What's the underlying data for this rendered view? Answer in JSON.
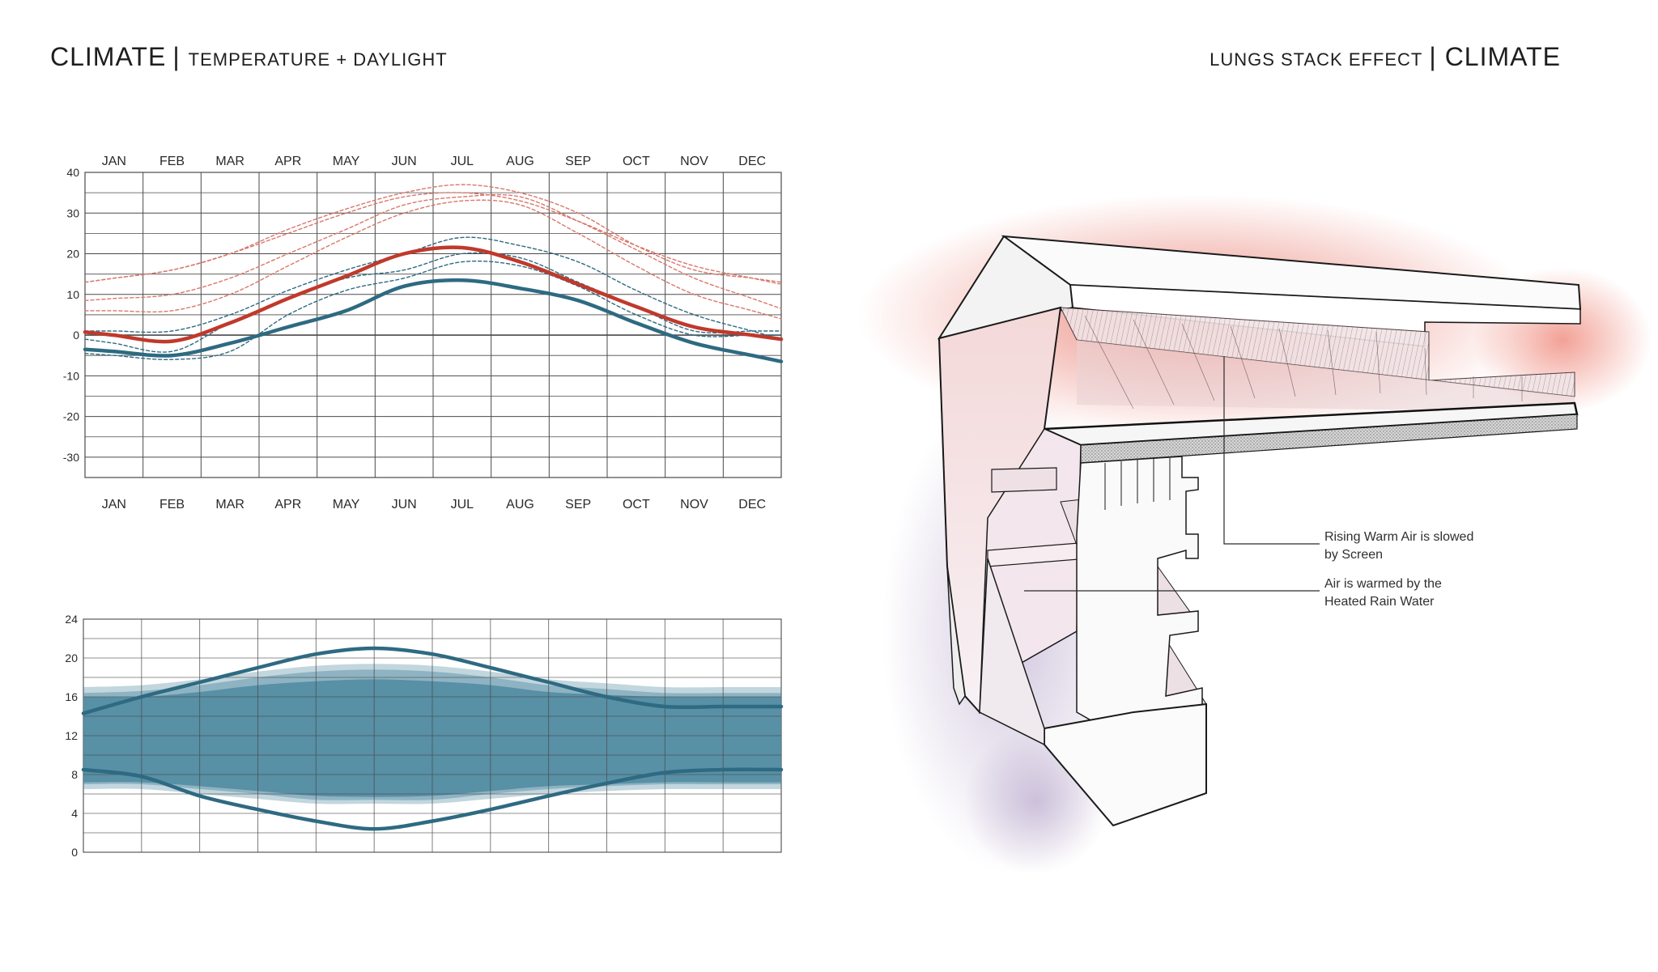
{
  "header_left": {
    "title": "CLIMATE",
    "divider": "|",
    "subtitle": "TEMPERATURE + DAYLIGHT"
  },
  "header_right": {
    "subtitle": "LUNGS STACK EFFECT",
    "divider": "|",
    "title": "CLIMATE"
  },
  "colors": {
    "red": "#c0392b",
    "red_light": "#d9776b",
    "blue": "#2e6a82",
    "blue_band": "#4f8aa1",
    "grid": "#4a4a4a"
  },
  "chart_data": [
    {
      "type": "line",
      "categories": [
        "JAN",
        "FEB",
        "MAR",
        "APR",
        "MAY",
        "JUN",
        "JUL",
        "AUG",
        "SEP",
        "OCT",
        "NOV",
        "DEC"
      ],
      "ylim": [
        -35,
        40
      ],
      "yticks": [
        40,
        30,
        20,
        10,
        0,
        -10,
        -20,
        -30
      ],
      "grid": true,
      "series": [
        {
          "style": "solid-red",
          "values": [
            0,
            -1.5,
            3,
            9,
            14.5,
            20,
            21.5,
            18,
            12.5,
            7,
            2,
            0
          ]
        },
        {
          "style": "solid-blue",
          "values": [
            -4,
            -5,
            -2,
            2,
            6,
            12,
            13.5,
            11.5,
            8.5,
            3,
            -2,
            -5
          ]
        },
        {
          "style": "dashed-red",
          "values": [
            14,
            16,
            20,
            25,
            30,
            34,
            35,
            33,
            28,
            22,
            17,
            14
          ]
        },
        {
          "style": "dashed-red",
          "values": [
            9,
            10,
            14,
            20,
            26,
            32,
            34,
            34,
            28,
            21,
            14,
            9
          ]
        },
        {
          "style": "dashed-red",
          "values": [
            6,
            6,
            10,
            17,
            24,
            30,
            33,
            32,
            25,
            17,
            10,
            6
          ]
        },
        {
          "style": "dashed-red",
          "values": [
            14,
            16,
            20,
            26,
            31,
            35,
            37,
            35,
            30,
            22,
            16,
            14
          ]
        },
        {
          "style": "dashed-blue",
          "values": [
            1,
            1,
            5,
            11,
            16,
            20,
            24,
            22,
            18,
            11,
            5,
            1
          ]
        },
        {
          "style": "dashed-blue",
          "values": [
            -2,
            -4,
            3,
            9,
            14,
            16,
            20,
            19,
            13,
            7,
            1,
            1
          ]
        },
        {
          "style": "dashed-blue",
          "values": [
            -5,
            -6,
            -4,
            5,
            11,
            14,
            18,
            17,
            12,
            5,
            0,
            0
          ]
        }
      ]
    },
    {
      "type": "area",
      "x": [
        0,
        1,
        2,
        3,
        4,
        5,
        6,
        7,
        8,
        9,
        10,
        11,
        12
      ],
      "ylim": [
        0,
        24
      ],
      "yticks": [
        "24",
        "20",
        "16",
        "12",
        "8",
        "4",
        "0"
      ],
      "grid": true,
      "series": [
        {
          "style": "line",
          "values": [
            14.3,
            16,
            17.5,
            19,
            20.4,
            21,
            20.4,
            19,
            17.5,
            16,
            15,
            15,
            15
          ]
        },
        {
          "style": "line",
          "values": [
            8.5,
            7.8,
            5.8,
            4.4,
            3.2,
            2.4,
            3.2,
            4.4,
            5.8,
            7.1,
            8.2,
            8.5,
            8.5
          ]
        },
        {
          "style": "band",
          "upper": [
            17,
            17.2,
            17.8,
            18.6,
            19.2,
            19.4,
            19.2,
            18.6,
            17.8,
            17.4,
            17,
            17,
            17
          ],
          "lower": [
            6.5,
            6.5,
            6,
            5.5,
            5,
            5,
            5,
            5.5,
            6,
            6.3,
            6.5,
            6.5,
            6.5
          ]
        },
        {
          "style": "band",
          "upper": [
            16.4,
            16.6,
            17.2,
            18,
            18.6,
            18.8,
            18.6,
            18,
            17.2,
            16.8,
            16.4,
            16.4,
            16.4
          ],
          "lower": [
            7,
            7,
            6.5,
            6,
            5.4,
            5.4,
            5.4,
            6,
            6.5,
            6.8,
            7,
            7,
            7
          ]
        },
        {
          "style": "band",
          "upper": [
            16,
            16,
            16.5,
            17.2,
            17.6,
            17.8,
            17.6,
            17.2,
            16.5,
            16.2,
            16,
            16,
            16
          ],
          "lower": [
            7.2,
            7.2,
            6.8,
            6.3,
            5.8,
            5.7,
            5.8,
            6.3,
            6.8,
            7,
            7.2,
            7.2,
            7.2
          ]
        }
      ]
    }
  ],
  "diagram": {
    "annotations": [
      {
        "lines": [
          "Rising Warm Air is slowed",
          "by Screen"
        ]
      },
      {
        "lines": [
          "Air is warmed by the",
          "Heated Rain Water"
        ]
      }
    ]
  }
}
